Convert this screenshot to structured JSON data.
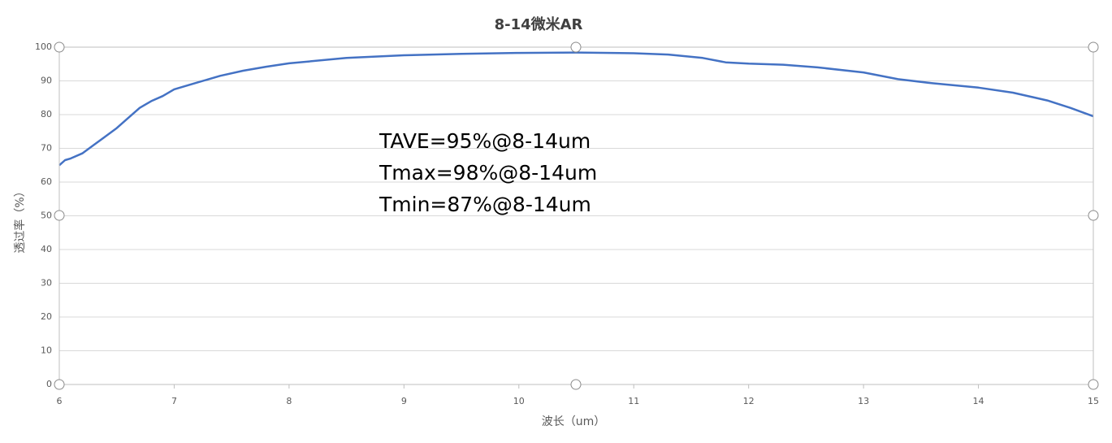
{
  "chart_data": {
    "type": "line",
    "title": "8-14微米AR",
    "x_label": "波长（um）",
    "y_label": "透过率（%）",
    "annotations": [
      "TAVE=95%@8-14um",
      "Tmax=98%@8-14um",
      "Tmin=87%@8-14um"
    ],
    "x": [
      6.0,
      6.05,
      6.1,
      6.2,
      6.3,
      6.4,
      6.5,
      6.6,
      6.7,
      6.8,
      6.9,
      7.0,
      7.2,
      7.4,
      7.6,
      7.8,
      8.0,
      8.5,
      9.0,
      9.5,
      10.0,
      10.5,
      11.0,
      11.3,
      11.6,
      11.8,
      12.0,
      12.3,
      12.6,
      13.0,
      13.3,
      13.6,
      14.0,
      14.3,
      14.6,
      14.8,
      15.0
    ],
    "series": [
      {
        "name": "透过率",
        "color": "#4472c4",
        "values": [
          65,
          66.5,
          67,
          68.5,
          71,
          73.5,
          76,
          79,
          82,
          84,
          85.5,
          87.5,
          89.5,
          91.5,
          93,
          94.2,
          95.2,
          96.8,
          97.6,
          98,
          98.3,
          98.4,
          98.2,
          97.8,
          96.8,
          95.5,
          95.1,
          94.8,
          94,
          92.5,
          90.5,
          89.3,
          88,
          86.5,
          84.2,
          82,
          79.5
        ]
      }
    ],
    "xlim": [
      6,
      15
    ],
    "xticks": [
      6,
      7,
      8,
      9,
      10,
      11,
      12,
      13,
      14,
      15
    ],
    "ylim": [
      0,
      100
    ],
    "yticks": [
      0,
      10,
      20,
      30,
      40,
      50,
      60,
      70,
      80,
      90,
      100
    ],
    "grid": true
  }
}
